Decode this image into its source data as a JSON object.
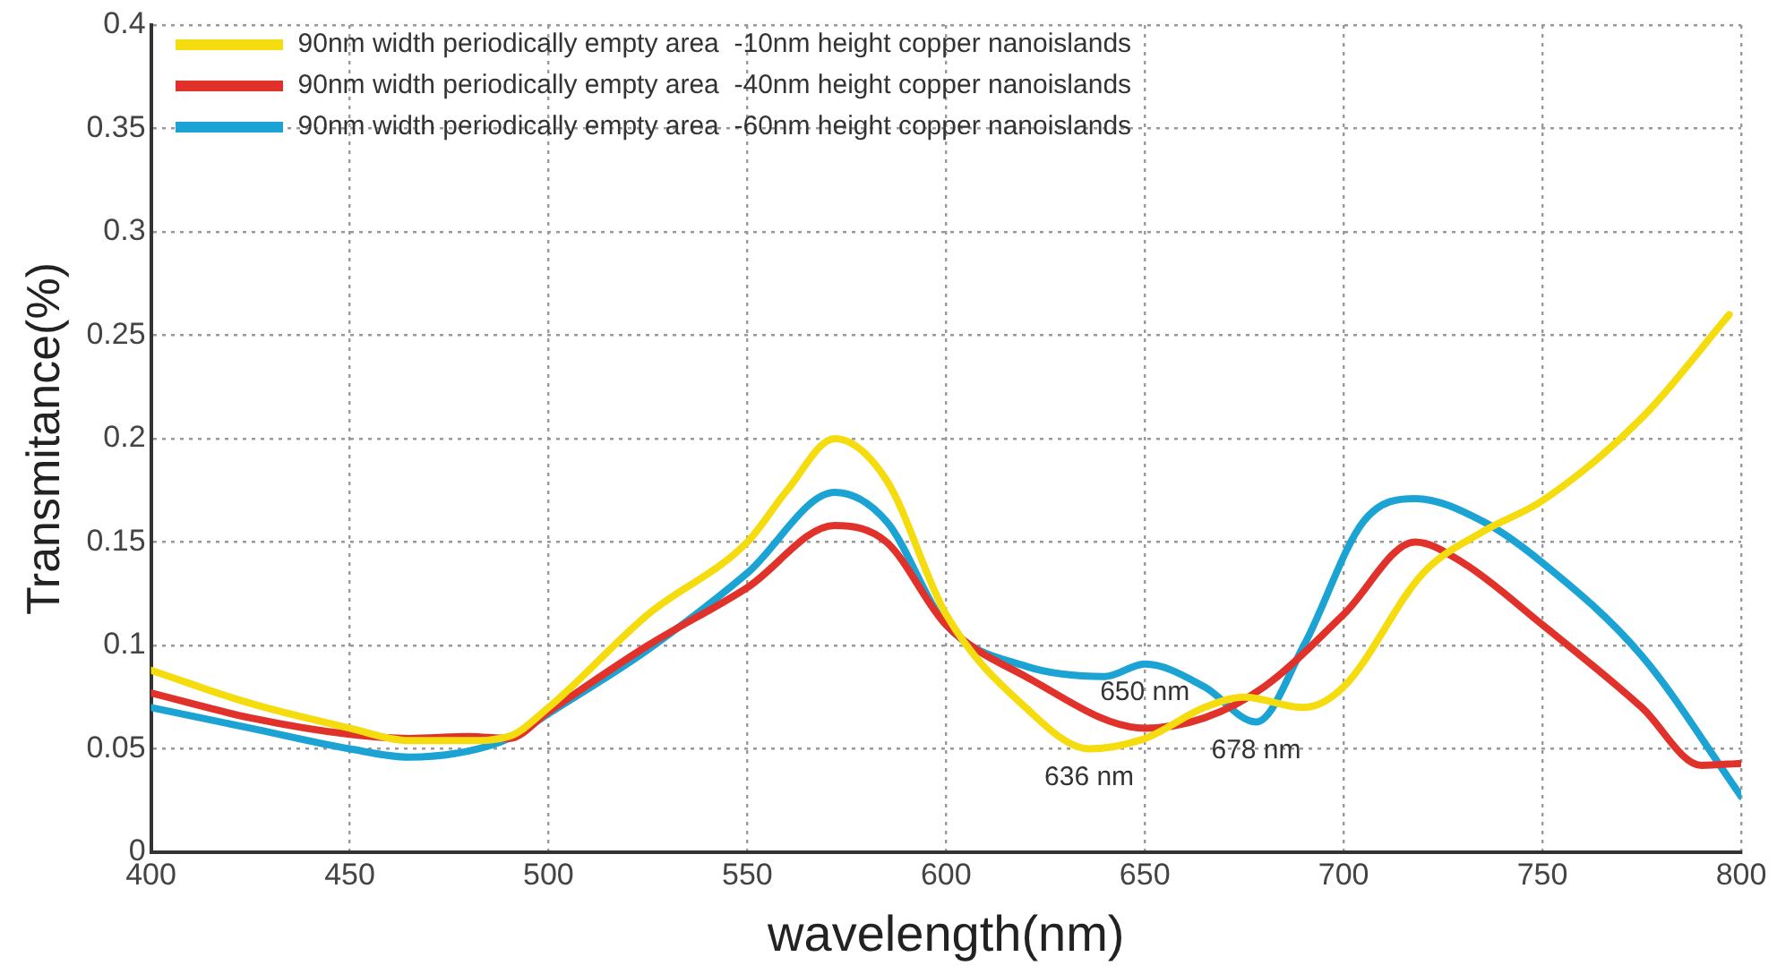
{
  "chart_data": {
    "type": "line",
    "xlabel": "wavelength(nm)",
    "ylabel": "Transmitance(%)",
    "xlim": [
      400,
      800
    ],
    "xticks": [
      400,
      450,
      500,
      550,
      600,
      650,
      700,
      750,
      800
    ],
    "ylim": [
      0,
      0.4
    ],
    "yticks": [
      0,
      0.05,
      0.1,
      0.15,
      0.2,
      0.25,
      0.3,
      0.35,
      0.4
    ],
    "grid": true,
    "legend": "top left",
    "marker": "none",
    "line_style": "solid",
    "series": [
      {
        "name": "90nm width periodically empty area  -10nm height copper nanoislands",
        "color": "#f5dc0f",
        "x": [
          400,
          425,
          450,
          465,
          480,
          490,
          500,
          525,
          550,
          560,
          572,
          585,
          600,
          620,
          636,
          650,
          665,
          675,
          690,
          700,
          720,
          735,
          750,
          775,
          797
        ],
        "values": [
          0.088,
          0.072,
          0.06,
          0.054,
          0.054,
          0.056,
          0.07,
          0.115,
          0.15,
          0.175,
          0.2,
          0.18,
          0.115,
          0.07,
          0.05,
          0.055,
          0.07,
          0.075,
          0.07,
          0.08,
          0.135,
          0.155,
          0.17,
          0.21,
          0.26
        ]
      },
      {
        "name": "90nm width periodically empty area  -40nm height copper nanoislands",
        "color": "#e0322b",
        "x": [
          400,
          425,
          450,
          465,
          480,
          490,
          500,
          525,
          550,
          572,
          585,
          600,
          620,
          650,
          665,
          680,
          700,
          718,
          730,
          750,
          775,
          790,
          800
        ],
        "values": [
          0.077,
          0.065,
          0.057,
          0.055,
          0.056,
          0.055,
          0.068,
          0.1,
          0.128,
          0.158,
          0.15,
          0.11,
          0.085,
          0.06,
          0.065,
          0.08,
          0.115,
          0.15,
          0.14,
          0.11,
          0.07,
          0.042,
          0.043
        ]
      },
      {
        "name": "90nm width periodically empty area  -60nm height copper nanoislands",
        "color": "#1ba3d4",
        "x": [
          400,
          425,
          450,
          465,
          480,
          490,
          500,
          525,
          550,
          572,
          585,
          600,
          620,
          640,
          650,
          665,
          678,
          690,
          705,
          718,
          735,
          750,
          775,
          800
        ],
        "values": [
          0.07,
          0.06,
          0.05,
          0.046,
          0.049,
          0.055,
          0.067,
          0.098,
          0.135,
          0.174,
          0.16,
          0.11,
          0.09,
          0.085,
          0.091,
          0.08,
          0.063,
          0.1,
          0.16,
          0.171,
          0.16,
          0.14,
          0.095,
          0.027
        ]
      }
    ],
    "annotations": [
      {
        "text": "636 nm",
        "x": 636,
        "y": 0.05
      },
      {
        "text": "650 nm",
        "x": 650,
        "y": 0.091
      },
      {
        "text": "678 nm",
        "x": 678,
        "y": 0.063
      }
    ]
  }
}
